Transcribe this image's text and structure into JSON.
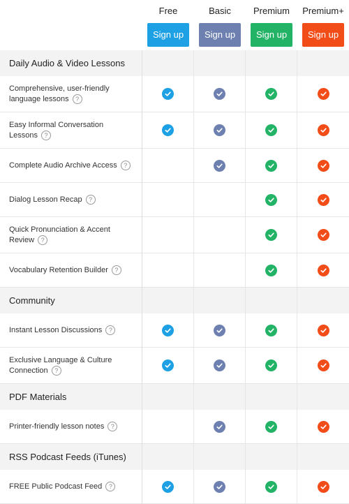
{
  "colors": {
    "free": "#1ea1e4",
    "basic": "#6d80b0",
    "premium": "#22b366",
    "premium_plus": "#f24d19"
  },
  "plans": [
    {
      "key": "free",
      "name": "Free",
      "button": "Sign up",
      "color": "#1ea1e4"
    },
    {
      "key": "basic",
      "name": "Basic",
      "button": "Sign up",
      "color": "#6d80b0"
    },
    {
      "key": "premium",
      "name": "Premium",
      "button": "Sign up",
      "color": "#22b366"
    },
    {
      "key": "premium_plus",
      "name": "Premium+",
      "button": "Sign up",
      "color": "#f24d19"
    }
  ],
  "sections": [
    {
      "title": "Daily Audio & Video Lessons",
      "features": [
        {
          "label_lines": [
            "Comprehensive, user-friendly",
            "language lessons"
          ],
          "height": 52,
          "included": [
            true,
            true,
            true,
            true
          ]
        },
        {
          "label_lines": [
            "Easy Informal Conversation",
            "Lessons"
          ],
          "height": 52,
          "included": [
            true,
            true,
            true,
            true
          ]
        },
        {
          "label_lines": [
            "Complete Audio Archive Access"
          ],
          "height": 49,
          "included": [
            false,
            true,
            true,
            true
          ]
        },
        {
          "label_lines": [
            "Dialog Lesson Recap"
          ],
          "height": 49,
          "included": [
            false,
            false,
            true,
            true
          ]
        },
        {
          "label_lines": [
            "Quick Pronunciation & Accent",
            "Review"
          ],
          "height": 52,
          "included": [
            false,
            false,
            true,
            true
          ]
        },
        {
          "label_lines": [
            "Vocabulary Retention Builder"
          ],
          "height": 49,
          "included": [
            false,
            false,
            true,
            true
          ]
        }
      ]
    },
    {
      "title": "Community",
      "features": [
        {
          "label_lines": [
            "Instant Lesson Discussions"
          ],
          "height": 49,
          "included": [
            true,
            true,
            true,
            true
          ]
        },
        {
          "label_lines": [
            "Exclusive Language & Culture",
            "Connection"
          ],
          "height": 52,
          "included": [
            true,
            true,
            true,
            true
          ]
        }
      ]
    },
    {
      "title": "PDF Materials",
      "features": [
        {
          "label_lines": [
            "Printer-friendly lesson notes"
          ],
          "height": 49,
          "included": [
            false,
            true,
            true,
            true
          ]
        }
      ]
    },
    {
      "title": "RSS Podcast Feeds (iTunes)",
      "features": [
        {
          "label_lines": [
            "FREE Public Podcast Feed"
          ],
          "height": 49,
          "included": [
            true,
            true,
            true,
            true
          ]
        }
      ]
    }
  ],
  "help_glyph": "?"
}
